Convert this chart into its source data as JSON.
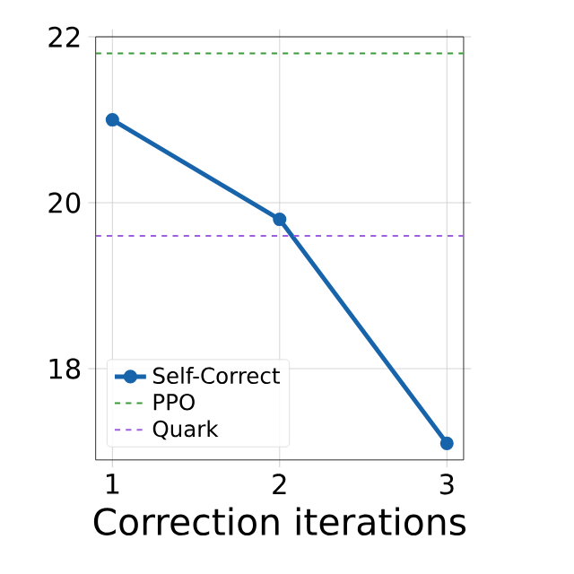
{
  "chart_data": {
    "type": "line",
    "xlabel": "Correction iterations",
    "x": [
      1,
      2,
      3
    ],
    "series": [
      {
        "name": "Self-Correct",
        "color": "#1764ab",
        "values": [
          21.0,
          19.8,
          17.1
        ]
      }
    ],
    "xlim": [
      0.9,
      3.1
    ],
    "xticks": [
      1,
      2,
      3
    ],
    "ylim": [
      16.9,
      22.0
    ],
    "yticks": [
      18,
      20,
      22
    ],
    "ref_lines": [
      {
        "axis": "y",
        "value": 21.8,
        "label": "PPO",
        "color": "#3a9a3a",
        "line_style": "dashed"
      },
      {
        "axis": "y",
        "value": 19.6,
        "label": "Quark",
        "color": "#9d5fe0",
        "line_style": "dashed"
      }
    ],
    "grid": true,
    "legend": "lower left",
    "marker": "circle",
    "line_style": "solid"
  }
}
